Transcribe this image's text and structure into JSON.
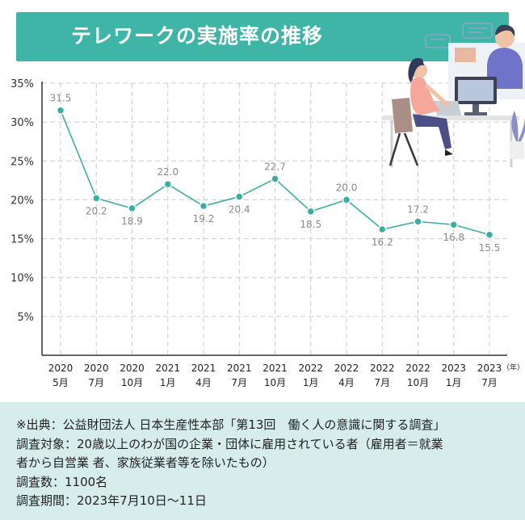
{
  "title": "テレワークの実施率の推移",
  "chart_data": {
    "type": "line",
    "title": "テレワークの実施率の推移",
    "xlabel": "",
    "ylabel": "",
    "x_unit": "（年）",
    "ylim": [
      0,
      35
    ],
    "y_ticks": [
      "5%",
      "10%",
      "15%",
      "20%",
      "25%",
      "30%",
      "35%"
    ],
    "y_tick_values": [
      5,
      10,
      15,
      20,
      25,
      30,
      35
    ],
    "grid": true,
    "categories": [
      {
        "year": "2020",
        "month": "5月"
      },
      {
        "year": "2020",
        "month": "7月"
      },
      {
        "year": "2020",
        "month": "10月"
      },
      {
        "year": "2021",
        "month": "1月"
      },
      {
        "year": "2021",
        "month": "4月"
      },
      {
        "year": "2021",
        "month": "7月"
      },
      {
        "year": "2021",
        "month": "10月"
      },
      {
        "year": "2022",
        "month": "1月"
      },
      {
        "year": "2022",
        "month": "4月"
      },
      {
        "year": "2022",
        "month": "7月"
      },
      {
        "year": "2022",
        "month": "10月"
      },
      {
        "year": "2023",
        "month": "1月"
      },
      {
        "year": "2023",
        "month": "7月"
      }
    ],
    "values": [
      31.5,
      20.2,
      18.9,
      22.0,
      19.2,
      20.4,
      22.7,
      18.5,
      20.0,
      16.2,
      17.2,
      16.8,
      15.5
    ],
    "value_labels": [
      "31.5",
      "20.2",
      "18.9",
      "22.0",
      "19.2",
      "20.4",
      "22.7",
      "18.5",
      "20.0",
      "16.2",
      "17.2",
      "16.8",
      "15.5"
    ],
    "line_color": "#3aaea3",
    "marker_fill": "#3aaea3"
  },
  "source": {
    "lines": [
      "※出典：公益財団法人 日本生産性本部「第13回　働く人の意識に関する調査」",
      "調査対象：20歳以上のわが国の企業・団体に雇用されている者（雇用者＝就業",
      "者から自営業 者、家族従業者等を除いたもの）",
      "調査数：1100名",
      "調査期間：2023年7月10日～11日"
    ]
  },
  "colors": {
    "background": "#d7edec",
    "title_band": "#3fb5a8",
    "grid": "#cccccc"
  }
}
